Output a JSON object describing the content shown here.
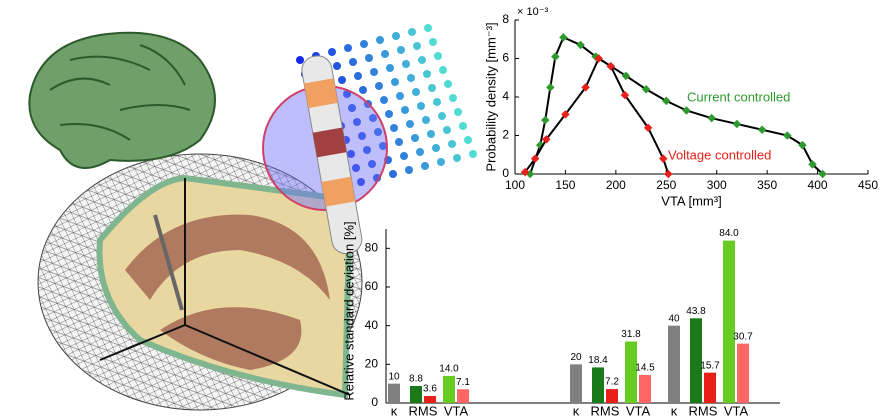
{
  "chart_data": [
    {
      "type": "line",
      "xlabel": "VTA [mm³]",
      "ylabel": "Probability density [mm⁻³]",
      "y_scale_label": "× 10⁻³",
      "xlim": [
        100,
        450
      ],
      "xticks": [
        100,
        150,
        200,
        250,
        300,
        350,
        400,
        450
      ],
      "ylim": [
        0,
        8
      ],
      "yticks": [
        0,
        2,
        4,
        6,
        8
      ],
      "series": [
        {
          "name": "Current controlled",
          "color": "#2e9a2e",
          "x": [
            115,
            125,
            130,
            135,
            140,
            148,
            165,
            180,
            195,
            210,
            230,
            250,
            270,
            295,
            320,
            345,
            370,
            385,
            395,
            405
          ],
          "values": [
            0,
            1.5,
            2.8,
            4.5,
            6.1,
            7.1,
            6.7,
            6.1,
            5.6,
            5.1,
            4.4,
            3.8,
            3.3,
            2.9,
            2.6,
            2.3,
            2.0,
            1.5,
            0.5,
            0
          ]
        },
        {
          "name": "Voltage controlled",
          "color": "#e8201a",
          "x": [
            110,
            120,
            131,
            150,
            170,
            183,
            195,
            209,
            232,
            247,
            252
          ],
          "values": [
            0.1,
            0.8,
            1.8,
            3.1,
            4.5,
            6.0,
            5.6,
            4.1,
            2.4,
            0.8,
            0
          ]
        }
      ]
    },
    {
      "type": "bar",
      "ylabel": "Relative standard deviation [%]",
      "ylim": [
        0,
        90
      ],
      "yticks": [
        0,
        20,
        40,
        60,
        80
      ],
      "categories": [
        "κ",
        "RMS",
        "VTA",
        "κ",
        "RMS",
        "VTA",
        "κ",
        "RMS",
        "VTA"
      ],
      "series": [
        {
          "colors": [
            "#808080",
            "#1a7a1a",
            "#66cc22",
            "#808080",
            "#1a7a1a",
            "#66cc22",
            "#808080",
            "#1a7a1a",
            "#66cc22"
          ],
          "values": [
            10,
            8.8,
            14.0,
            20,
            18.4,
            31.8,
            40,
            43.8,
            84.0
          ],
          "value_labels": [
            "10",
            "8.8",
            "14.0",
            "20",
            "18.4",
            "31.8",
            "40",
            "43.8",
            "84.0"
          ]
        },
        {
          "colors": [
            null,
            "#e8201a",
            "#ff6666",
            null,
            "#e8201a",
            "#ff6666",
            null,
            "#e8201a",
            "#ff6666"
          ],
          "values": [
            null,
            3.6,
            7.1,
            null,
            7.2,
            14.5,
            null,
            15.7,
            30.7
          ],
          "value_labels": [
            null,
            "3.6",
            "7.1",
            null,
            "7.2",
            "14.5",
            null,
            "15.7",
            "30.7"
          ]
        }
      ]
    }
  ]
}
